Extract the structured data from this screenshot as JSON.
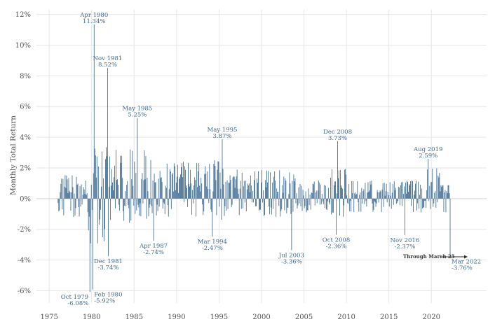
{
  "chart_data": {
    "type": "bar",
    "title": "",
    "xlabel": "",
    "ylabel": "Monthly Total Return",
    "colors": {
      "bar": "#3e6a93",
      "grid": "#e6e6e6",
      "zero": "#d8d8d8",
      "text": "#555555"
    },
    "xlim": [
      1973.5,
      2026.5
    ],
    "ylim": [
      -6.8,
      12.3
    ],
    "grid": true,
    "x_ticks": [
      1975,
      1980,
      1985,
      1990,
      1995,
      2000,
      2005,
      2010,
      2015,
      2020
    ],
    "x_tick_labels": [
      "1975",
      "1980",
      "1985",
      "1990",
      "1995",
      "2000",
      "2005",
      "2010",
      "2015",
      "2020"
    ],
    "y_ticks": [
      -6,
      -4,
      -2,
      0,
      2,
      4,
      6,
      8,
      10,
      12
    ],
    "y_tick_labels": [
      "-6%",
      "-4%",
      "-2%",
      "0%",
      "2%",
      "4%",
      "6%",
      "8%",
      "10%",
      "12%"
    ],
    "series_start": {
      "year": 1976,
      "month": 1
    },
    "series_end": {
      "year": 2022,
      "month": 3
    },
    "profile": [
      {
        "from": 1976.0,
        "to": 1979.5,
        "pos": 1.6,
        "neg": -1.2
      },
      {
        "from": 1979.5,
        "to": 1982.5,
        "pos": 3.6,
        "neg": -3.0
      },
      {
        "from": 1982.5,
        "to": 1987.0,
        "pos": 3.2,
        "neg": -1.6
      },
      {
        "from": 1987.0,
        "to": 1993.0,
        "pos": 2.4,
        "neg": -1.2
      },
      {
        "from": 1993.0,
        "to": 1996.0,
        "pos": 2.6,
        "neg": -1.4
      },
      {
        "from": 1996.0,
        "to": 2004.0,
        "pos": 1.9,
        "neg": -1.2
      },
      {
        "from": 2004.0,
        "to": 2008.0,
        "pos": 1.2,
        "neg": -0.9
      },
      {
        "from": 2008.0,
        "to": 2010.0,
        "pos": 2.1,
        "neg": -1.7
      },
      {
        "from": 2010.0,
        "to": 2019.0,
        "pos": 1.2,
        "neg": -0.9
      },
      {
        "from": 2019.0,
        "to": 2021.0,
        "pos": 2.0,
        "neg": -0.8
      },
      {
        "from": 2021.0,
        "to": 2022.3,
        "pos": 0.9,
        "neg": -1.5
      }
    ],
    "highlights": [
      {
        "year": 1979,
        "month": 10,
        "value": -6.08
      },
      {
        "year": 1980,
        "month": 2,
        "value": -5.92
      },
      {
        "year": 1980,
        "month": 4,
        "value": 11.34
      },
      {
        "year": 1981,
        "month": 11,
        "value": 8.52
      },
      {
        "year": 1981,
        "month": 12,
        "value": -3.74
      },
      {
        "year": 1985,
        "month": 5,
        "value": 5.25
      },
      {
        "year": 1987,
        "month": 4,
        "value": -2.74
      },
      {
        "year": 1994,
        "month": 3,
        "value": -2.47
      },
      {
        "year": 1995,
        "month": 5,
        "value": 3.87
      },
      {
        "year": 2003,
        "month": 7,
        "value": -3.36
      },
      {
        "year": 2008,
        "month": 10,
        "value": -2.36
      },
      {
        "year": 2008,
        "month": 12,
        "value": 3.73
      },
      {
        "year": 2016,
        "month": 11,
        "value": -2.37
      },
      {
        "year": 2019,
        "month": 8,
        "value": 2.59
      },
      {
        "year": 2022,
        "month": 3,
        "value": -3.76
      }
    ],
    "annotations": [
      {
        "date": "Apr 1980",
        "value": "11.34%",
        "side": "above",
        "align": "middle"
      },
      {
        "date": "Nov 1981",
        "value": "8.52%",
        "side": "above",
        "align": "middle"
      },
      {
        "date": "May 1985",
        "value": "5.25%",
        "side": "above",
        "align": "middle"
      },
      {
        "date": "May 1995",
        "value": "3.87%",
        "side": "above",
        "align": "middle"
      },
      {
        "date": "Dec 2008",
        "value": "3.73%",
        "side": "above",
        "align": "middle"
      },
      {
        "date": "Aug 2019",
        "value": "2.59%",
        "side": "above",
        "align": "middle"
      },
      {
        "date": "Dec 1981",
        "value": "-3.74%",
        "side": "below",
        "align": "middle"
      },
      {
        "date": "Apr 1987",
        "value": "-2.74%",
        "side": "below",
        "align": "middle"
      },
      {
        "date": "Mar 1994",
        "value": "-2.47%",
        "side": "below",
        "align": "middle"
      },
      {
        "date": "Jul 2003",
        "value": "-3.36%",
        "side": "below",
        "align": "middle"
      },
      {
        "date": "Oct 2008",
        "value": "-2.36%",
        "side": "below",
        "align": "middle"
      },
      {
        "date": "Nov 2016",
        "value": "-2.37%",
        "side": "below",
        "align": "middle"
      },
      {
        "date": "Oct 1979",
        "value": "-6.08%",
        "side": "below",
        "align": "end"
      },
      {
        "date": "Feb 1980",
        "value": "-5.92%",
        "side": "below",
        "align": "start"
      },
      {
        "date": "Mar 2022",
        "value": "-3.76%",
        "side": "below",
        "align": "start"
      }
    ],
    "note": "Through March 25"
  }
}
